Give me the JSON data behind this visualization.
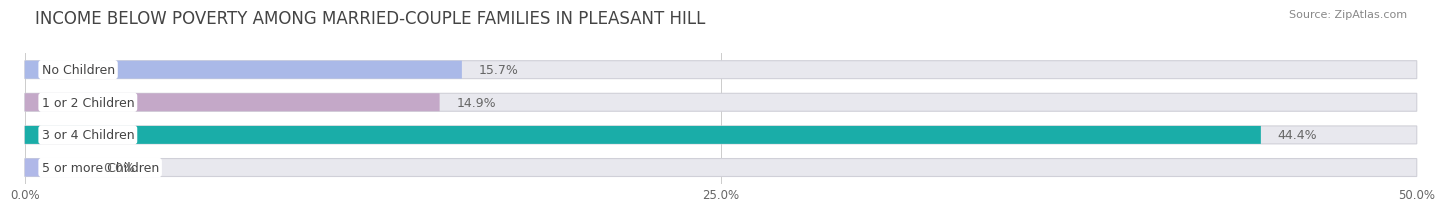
{
  "title": "INCOME BELOW POVERTY AMONG MARRIED-COUPLE FAMILIES IN PLEASANT HILL",
  "source": "Source: ZipAtlas.com",
  "categories": [
    "No Children",
    "1 or 2 Children",
    "3 or 4 Children",
    "5 or more Children"
  ],
  "values": [
    15.7,
    14.9,
    44.4,
    0.0
  ],
  "bar_colors": [
    "#aab9e8",
    "#c4a8c8",
    "#1aada8",
    "#b0b8e8"
  ],
  "background_color": "#ffffff",
  "bar_bg_color": "#e8e8ee",
  "bar_bg_edge_color": "#d0d0d8",
  "xlim": [
    0,
    50
  ],
  "xticks": [
    0.0,
    25.0,
    50.0
  ],
  "xtick_labels": [
    "0.0%",
    "25.0%",
    "50.0%"
  ],
  "title_fontsize": 12,
  "label_fontsize": 9,
  "value_fontsize": 9,
  "bar_height": 0.55,
  "value_label_color": "#666666",
  "title_color": "#444444",
  "source_color": "#888888"
}
